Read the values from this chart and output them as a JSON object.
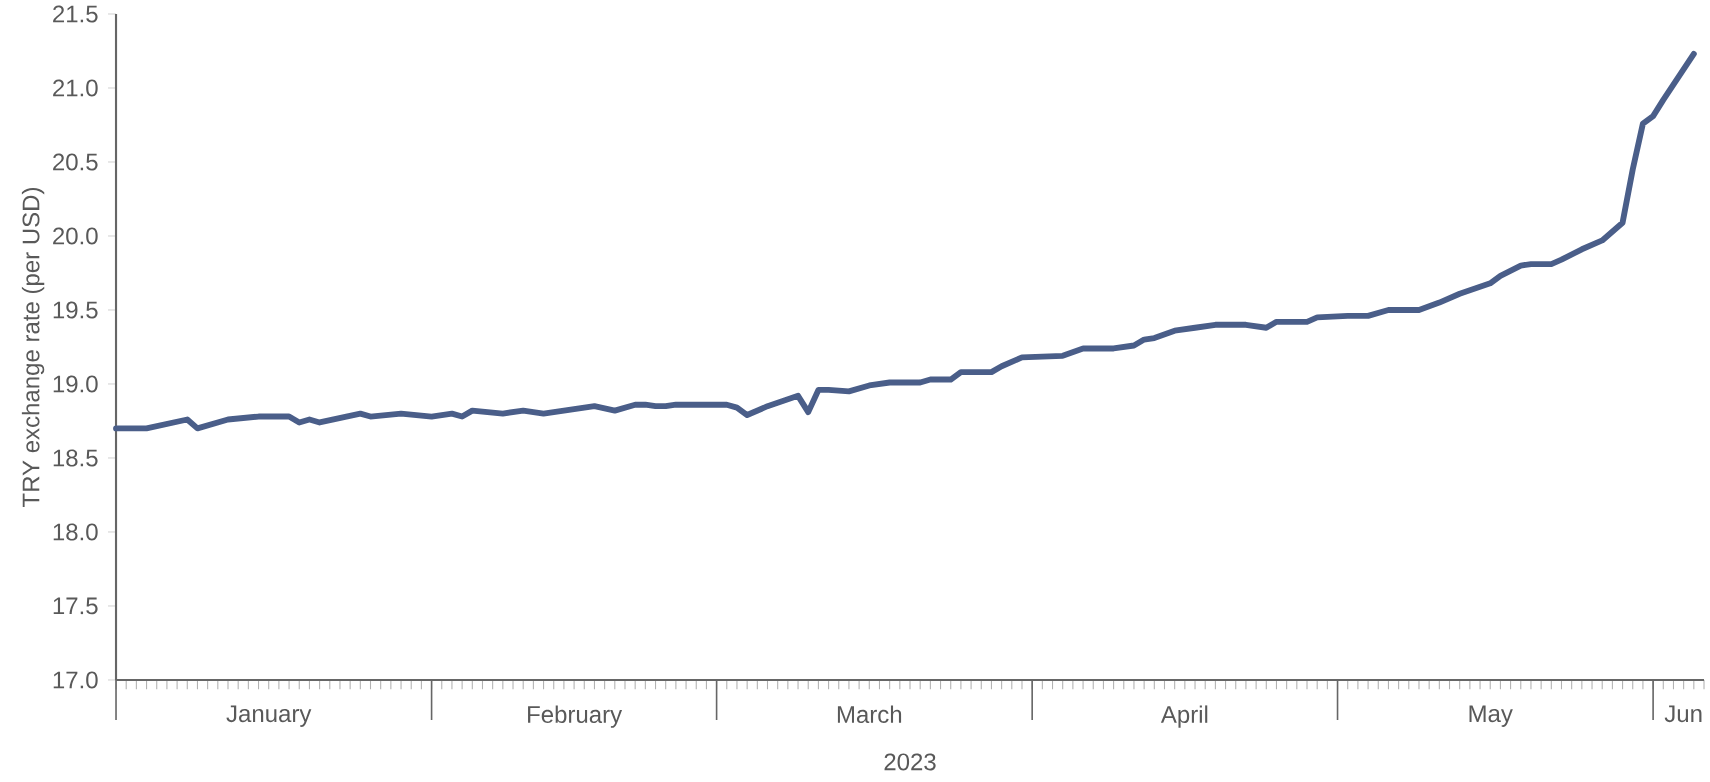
{
  "chart_data": {
    "type": "line",
    "xlabel": "2023",
    "ylabel": "TRY exchange rate (per USD)",
    "x": [
      "2023-01-01",
      "2023-01-04",
      "2023-01-08",
      "2023-01-09",
      "2023-01-12",
      "2023-01-15",
      "2023-01-18",
      "2023-01-19",
      "2023-01-20",
      "2023-01-21",
      "2023-01-25",
      "2023-01-26",
      "2023-01-29",
      "2023-02-01",
      "2023-02-03",
      "2023-02-04",
      "2023-02-05",
      "2023-02-08",
      "2023-02-10",
      "2023-02-12",
      "2023-02-16",
      "2023-02-17",
      "2023-02-19",
      "2023-02-21",
      "2023-02-22",
      "2023-02-23",
      "2023-02-24",
      "2023-02-25",
      "2023-03-02",
      "2023-03-03",
      "2023-03-04",
      "2023-03-06",
      "2023-03-09",
      "2023-03-10",
      "2023-03-11",
      "2023-03-12",
      "2023-03-14",
      "2023-03-16",
      "2023-03-18",
      "2023-03-21",
      "2023-03-22",
      "2023-03-24",
      "2023-03-25",
      "2023-03-28",
      "2023-03-29",
      "2023-03-31",
      "2023-04-04",
      "2023-04-06",
      "2023-04-09",
      "2023-04-11",
      "2023-04-12",
      "2023-04-13",
      "2023-04-15",
      "2023-04-17",
      "2023-04-19",
      "2023-04-22",
      "2023-04-24",
      "2023-04-25",
      "2023-04-28",
      "2023-04-29",
      "2023-05-02",
      "2023-05-04",
      "2023-05-06",
      "2023-05-09",
      "2023-05-11",
      "2023-05-13",
      "2023-05-16",
      "2023-05-17",
      "2023-05-19",
      "2023-05-20",
      "2023-05-22",
      "2023-05-23",
      "2023-05-25",
      "2023-05-27",
      "2023-05-29",
      "2023-05-30",
      "2023-05-31",
      "2023-06-01",
      "2023-06-02",
      "2023-06-05"
    ],
    "series": [
      {
        "color": "#4a5e89",
        "values": [
          18.7,
          18.7,
          18.76,
          18.7,
          18.76,
          18.78,
          18.78,
          18.74,
          18.76,
          18.74,
          18.8,
          18.78,
          18.8,
          18.78,
          18.8,
          18.78,
          18.82,
          18.8,
          18.82,
          18.8,
          18.84,
          18.85,
          18.82,
          18.86,
          18.86,
          18.85,
          18.85,
          18.86,
          18.86,
          18.84,
          18.79,
          18.85,
          18.92,
          18.81,
          18.96,
          18.96,
          18.95,
          18.99,
          19.01,
          19.01,
          19.03,
          19.03,
          19.08,
          19.08,
          19.12,
          19.18,
          19.19,
          19.24,
          19.24,
          19.26,
          19.3,
          19.31,
          19.36,
          19.38,
          19.4,
          19.4,
          19.38,
          19.42,
          19.42,
          19.45,
          19.46,
          19.46,
          19.5,
          19.5,
          19.55,
          19.61,
          19.68,
          19.73,
          19.8,
          19.81,
          19.81,
          19.84,
          19.91,
          19.97,
          20.09,
          20.45,
          20.76,
          20.81,
          20.92,
          21.23
        ]
      }
    ],
    "xlim": [
      "2023-01-01",
      "2023-06-06"
    ],
    "xticks": [
      {
        "value": "2023-01-01",
        "label": null
      },
      {
        "value": "2023-01-16",
        "label": "January"
      },
      {
        "value": "2023-02-01",
        "label": null
      },
      {
        "value": "2023-02-15",
        "label": "February"
      },
      {
        "value": "2023-03-01",
        "label": null
      },
      {
        "value": "2023-03-16",
        "label": "March"
      },
      {
        "value": "2023-04-01",
        "label": null
      },
      {
        "value": "2023-04-16",
        "label": "April"
      },
      {
        "value": "2023-05-01",
        "label": null
      },
      {
        "value": "2023-05-16",
        "label": "May"
      },
      {
        "value": "2023-06-01",
        "label": null
      },
      {
        "value": "2023-06-04",
        "label": "Jun"
      }
    ],
    "ylim": [
      17.0,
      21.5
    ],
    "yticks": [
      {
        "value": 17,
        "label": "17.0"
      },
      {
        "value": 17.5,
        "label": "17.5"
      },
      {
        "value": 18,
        "label": "18.0"
      },
      {
        "value": 18.5,
        "label": "18.5"
      },
      {
        "value": 19,
        "label": "19.0"
      },
      {
        "value": 19.5,
        "label": "19.5"
      },
      {
        "value": 20,
        "label": "20.0"
      },
      {
        "value": 20.5,
        "label": "20.5"
      },
      {
        "value": 21,
        "label": "21.0"
      },
      {
        "value": 21.5,
        "label": "21.5"
      }
    ],
    "grid": false,
    "legend": false,
    "marker": "none",
    "line_style": "solid"
  }
}
